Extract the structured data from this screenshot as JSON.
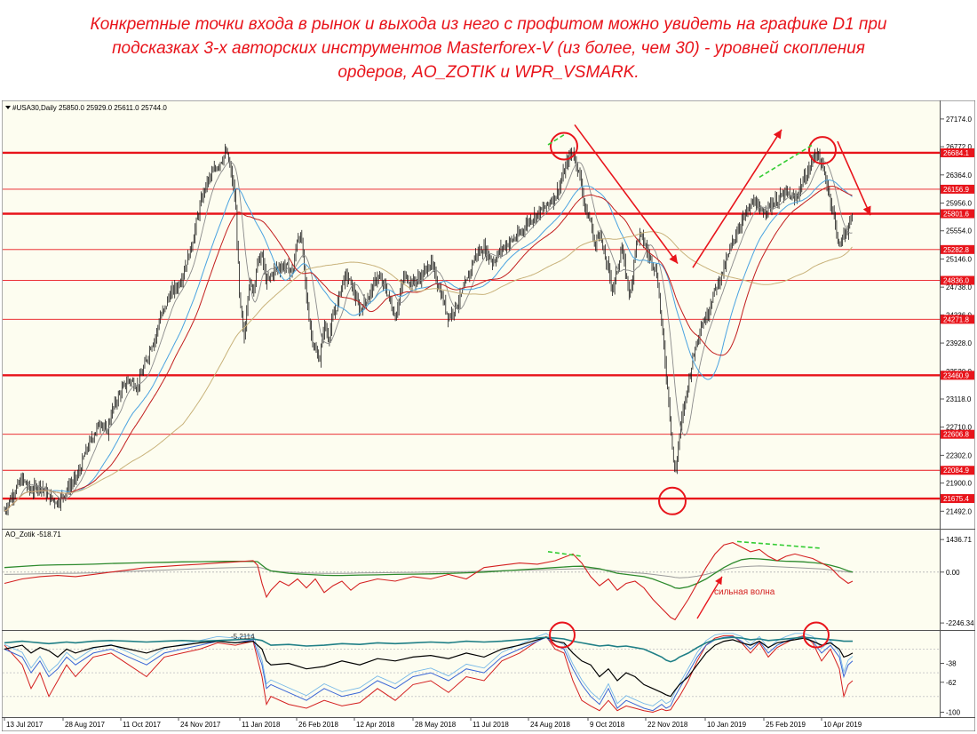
{
  "caption": {
    "lines": [
      "Конкретные точки входа в рынок и выхода из него с профитом  можно увидеть на графике D1 при",
      "подсказках  3-х  авторских инструментов Masterforex-V (из более, чем 30) - уровней скопления",
      "ордеров, AO_ZOTIK  и  WPR_VSMARK."
    ]
  },
  "colors": {
    "background": "#fdfdf0",
    "level_line": "#e8141b",
    "price_bars": "#1a1a1a",
    "ma_fast": "#8a8a8a",
    "ma_blue": "#4aa3e0",
    "ma_red": "#c21e1e",
    "ma_tan": "#c8b27a",
    "ao_red": "#d42020",
    "ao_green": "#2d8a2d",
    "ao_gray": "#9a9a9a",
    "wpr_teal": "#1f7f86",
    "wpr_blue": "#3a66d6",
    "wpr_light": "#76b8e8",
    "arrow_red": "#e8141b",
    "divergence_green": "#33cc33"
  },
  "chart_data": [
    {
      "id": "price",
      "type": "line",
      "symbol_label": "#USA30,Daily  25850.0 25929.0 25611.0 25744.0",
      "yticks": [
        "27174.0",
        "26772.0",
        "26364.0",
        "25956.0",
        "25554.0",
        "25146.0",
        "24738.0",
        "24336.0",
        "23928.0",
        "23520.0",
        "23118.0",
        "22710.0",
        "22302.0",
        "21900.0",
        "21492.0"
      ],
      "ytick_values": [
        27174,
        26772,
        26364,
        25956,
        25554,
        25146,
        24738,
        24336,
        23928,
        23520,
        23118,
        22710,
        22302,
        21900,
        21492
      ],
      "ylim": [
        21290,
        27340
      ],
      "levels": [
        {
          "label": "26684.1",
          "value": 26684.1,
          "bold": true
        },
        {
          "label": "26156.9",
          "value": 26156.9,
          "bold": false
        },
        {
          "label": "25801.6",
          "value": 25801.6,
          "bold": true
        },
        {
          "label": "25282.8",
          "value": 25282.8,
          "bold": false
        },
        {
          "label": "24836.0",
          "value": 24836.0,
          "bold": false
        },
        {
          "label": "24271.8",
          "value": 24271.8,
          "bold": false
        },
        {
          "label": "23460.9",
          "value": 23460.9,
          "bold": true
        },
        {
          "label": "22606.8",
          "value": 22606.8,
          "bold": false
        },
        {
          "label": "22084.9",
          "value": 22084.9,
          "bold": false
        },
        {
          "label": "21675.4",
          "value": 21675.4,
          "bold": true
        }
      ],
      "x": [
        0,
        10,
        20,
        30,
        40,
        50,
        60,
        70,
        80,
        85,
        90,
        97,
        105,
        110,
        115,
        120,
        125,
        130,
        140,
        150,
        155,
        160,
        165,
        170,
        175,
        180,
        185,
        190,
        195,
        200,
        205,
        210,
        215,
        220,
        225,
        230,
        240,
        250,
        255,
        260,
        265,
        270,
        275,
        280,
        285,
        290,
        295,
        300,
        305,
        315,
        325,
        330,
        335,
        340,
        345,
        350,
        355,
        360,
        365,
        370,
        375,
        380,
        385,
        390,
        400,
        410,
        420,
        430,
        440,
        450,
        460,
        470,
        480,
        490,
        500,
        510,
        520,
        530,
        540,
        550,
        560,
        570,
        580,
        590,
        600,
        610,
        615,
        620,
        625,
        630,
        635,
        640,
        645,
        650,
        655,
        660,
        665,
        670,
        675,
        680,
        685,
        690,
        695,
        700,
        705,
        710,
        715,
        720,
        725,
        730,
        735,
        740,
        745,
        750,
        752,
        755,
        760,
        765,
        770,
        775,
        780,
        785,
        790,
        800,
        810,
        820,
        830,
        840,
        845,
        850,
        860,
        870,
        880,
        890,
        900,
        905,
        910,
        915,
        920,
        925,
        930,
        935,
        940,
        945,
        950,
        955
      ],
      "close": [
        21500,
        21750,
        21960,
        21780,
        21880,
        21700,
        21620,
        21800,
        21960,
        22080,
        22300,
        22510,
        22720,
        22800,
        22600,
        22900,
        23060,
        23200,
        23400,
        23300,
        23500,
        23680,
        23900,
        24000,
        24300,
        24400,
        24600,
        24700,
        24750,
        24900,
        25100,
        25300,
        25600,
        25900,
        26150,
        26300,
        26500,
        26700,
        26400,
        26000,
        24500,
        24000,
        24800,
        24700,
        25100,
        25200,
        24800,
        24900,
        25000,
        25050,
        24950,
        25500,
        25400,
        24600,
        24100,
        23800,
        23700,
        24200,
        24000,
        24300,
        24500,
        24800,
        24900,
        24800,
        24400,
        24600,
        24900,
        24700,
        24300,
        24900,
        24800,
        24900,
        25100,
        24700,
        24300,
        24500,
        24800,
        25200,
        25300,
        25100,
        25300,
        25400,
        25500,
        25700,
        25800,
        25900,
        26000,
        26050,
        26200,
        26400,
        26600,
        26700,
        26500,
        26200,
        25800,
        25700,
        25300,
        25600,
        25200,
        25000,
        24700,
        25000,
        25300,
        24900,
        24600,
        25300,
        25500,
        25400,
        25200,
        25100,
        24900,
        24200,
        23500,
        22800,
        22400,
        22000,
        22600,
        23000,
        23350,
        23700,
        24000,
        24200,
        24300,
        24700,
        25000,
        25400,
        25700,
        25900,
        26000,
        25800,
        25900,
        26000,
        26100,
        26000,
        26300,
        26400,
        26600,
        26700,
        26500,
        26300,
        26000,
        25700,
        25300,
        25500,
        25600,
        25744
      ]
    },
    {
      "id": "ao_zotik",
      "type": "line",
      "label": "AO_Zotik -518.71",
      "yticks": [
        "1436.71",
        "0.00",
        "-2246.34"
      ],
      "ytick_values": [
        1436.71,
        0,
        -2246.34
      ],
      "ylim": [
        -2400,
        1600
      ],
      "annotation": "сильная волна",
      "x": [
        0,
        20,
        40,
        60,
        80,
        100,
        120,
        140,
        160,
        180,
        200,
        220,
        240,
        260,
        280,
        285,
        290,
        295,
        300,
        310,
        320,
        330,
        340,
        350,
        360,
        370,
        380,
        390,
        400,
        420,
        440,
        460,
        480,
        500,
        520,
        540,
        560,
        580,
        600,
        620,
        640,
        650,
        660,
        670,
        680,
        690,
        700,
        710,
        720,
        730,
        740,
        750,
        755,
        760,
        770,
        780,
        790,
        800,
        810,
        820,
        830,
        840,
        850,
        860,
        870,
        880,
        890,
        900,
        910,
        920,
        930,
        940,
        950,
        955
      ],
      "ao": [
        -500,
        -300,
        -200,
        -150,
        -200,
        -100,
        0,
        100,
        200,
        250,
        300,
        350,
        400,
        450,
        500,
        300,
        -500,
        -1100,
        -800,
        -400,
        -600,
        -300,
        -700,
        -300,
        -900,
        -600,
        -400,
        -800,
        -500,
        -300,
        -400,
        -200,
        -300,
        -100,
        -300,
        200,
        300,
        400,
        350,
        500,
        800,
        400,
        -200,
        -600,
        -300,
        -800,
        -500,
        -400,
        -700,
        -1200,
        -1600,
        -2000,
        -2100,
        -1800,
        -1200,
        -500,
        200,
        800,
        1200,
        1300,
        1100,
        900,
        1000,
        700,
        500,
        700,
        800,
        700,
        600,
        400,
        200,
        -200,
        -500,
        -400
      ],
      "signal": [
        200,
        250,
        300,
        320,
        330,
        350,
        380,
        400,
        420,
        430,
        450,
        460,
        470,
        480,
        470,
        460,
        300,
        150,
        50,
        0,
        -50,
        -80,
        -100,
        -120,
        -140,
        -150,
        -150,
        -140,
        -130,
        -120,
        -100,
        -90,
        -80,
        -60,
        -30,
        0,
        50,
        100,
        150,
        200,
        250,
        260,
        200,
        150,
        50,
        -50,
        -100,
        -150,
        -200,
        -300,
        -450,
        -600,
        -700,
        -720,
        -650,
        -500,
        -300,
        -50,
        200,
        400,
        550,
        600,
        580,
        550,
        500,
        480,
        470,
        450,
        420,
        380,
        300,
        200,
        50,
        0
      ],
      "base": [
        -100,
        -90,
        -80,
        -60,
        -50,
        -30,
        0,
        30,
        60,
        90,
        120,
        150,
        180,
        200,
        220,
        220,
        180,
        120,
        60,
        20,
        0,
        -20,
        -40,
        -50,
        -60,
        -60,
        -60,
        -50,
        -40,
        -30,
        -20,
        -10,
        0,
        10,
        20,
        40,
        60,
        80,
        100,
        120,
        140,
        150,
        140,
        120,
        80,
        30,
        0,
        -30,
        -60,
        -100,
        -150,
        -200,
        -230,
        -250,
        -230,
        -180,
        -100,
        0,
        100,
        180,
        230,
        260,
        270,
        260,
        240,
        220,
        200,
        180,
        160,
        140,
        100,
        50,
        0,
        -10
      ]
    },
    {
      "id": "wpr_vsmark",
      "type": "line",
      "yticks": [
        "-38",
        "-62",
        "-100"
      ],
      "ytick_values": [
        -38,
        -62,
        -100
      ],
      "ylim": [
        -104,
        2
      ],
      "legend_strip": "-5.2114",
      "x": [
        0,
        20,
        30,
        40,
        50,
        60,
        70,
        80,
        100,
        120,
        140,
        160,
        180,
        200,
        220,
        240,
        260,
        280,
        290,
        295,
        300,
        320,
        340,
        360,
        380,
        400,
        420,
        440,
        460,
        480,
        500,
        520,
        540,
        560,
        580,
        600,
        610,
        620,
        630,
        640,
        650,
        660,
        670,
        680,
        690,
        700,
        710,
        720,
        730,
        740,
        745,
        750,
        755,
        760,
        770,
        780,
        790,
        800,
        810,
        820,
        830,
        840,
        850,
        860,
        870,
        880,
        890,
        900,
        910,
        920,
        930,
        940,
        945,
        950,
        955
      ],
      "teal": [
        -12,
        -10,
        -11,
        -12,
        -13,
        -12,
        -11,
        -12,
        -10,
        -9,
        -10,
        -11,
        -10,
        -9,
        -10,
        -9,
        -8,
        -7,
        -9,
        -12,
        -15,
        -14,
        -16,
        -15,
        -13,
        -14,
        -12,
        -13,
        -12,
        -11,
        -12,
        -10,
        -11,
        -10,
        -8,
        -6,
        -5,
        -6,
        -7,
        -10,
        -12,
        -14,
        -16,
        -15,
        -17,
        -16,
        -18,
        -20,
        -25,
        -30,
        -34,
        -36,
        -34,
        -30,
        -25,
        -18,
        -12,
        -8,
        -6,
        -5,
        -6,
        -8,
        -7,
        -9,
        -8,
        -7,
        -6,
        -5,
        -6,
        -7,
        -8,
        -9,
        -10,
        -10,
        -10
      ],
      "black": [
        -20,
        -15,
        -25,
        -18,
        -22,
        -30,
        -20,
        -25,
        -18,
        -15,
        -20,
        -25,
        -18,
        -15,
        -12,
        -10,
        -12,
        -10,
        -20,
        -35,
        -40,
        -38,
        -45,
        -42,
        -35,
        -40,
        -32,
        -35,
        -30,
        -28,
        -32,
        -25,
        -30,
        -20,
        -15,
        -8,
        -5,
        -10,
        -12,
        -25,
        -35,
        -40,
        -55,
        -45,
        -60,
        -50,
        -55,
        -65,
        -70,
        -75,
        -78,
        -80,
        -72,
        -65,
        -55,
        -40,
        -25,
        -15,
        -10,
        -8,
        -12,
        -15,
        -10,
        -18,
        -12,
        -10,
        -8,
        -6,
        -10,
        -15,
        -12,
        -20,
        -30,
        -28,
        -25
      ],
      "blue": [
        -20,
        -30,
        -50,
        -35,
        -55,
        -45,
        -30,
        -40,
        -25,
        -20,
        -30,
        -40,
        -25,
        -20,
        -15,
        -10,
        -12,
        -8,
        -40,
        -70,
        -65,
        -75,
        -85,
        -70,
        -80,
        -75,
        -60,
        -70,
        -55,
        -50,
        -60,
        -45,
        -50,
        -30,
        -20,
        -10,
        -5,
        -15,
        -20,
        -45,
        -65,
        -80,
        -90,
        -70,
        -95,
        -85,
        -90,
        -95,
        -98,
        -90,
        -95,
        -92,
        -80,
        -70,
        -50,
        -30,
        -15,
        -8,
        -5,
        -4,
        -10,
        -20,
        -10,
        -25,
        -15,
        -10,
        -6,
        -4,
        -10,
        -25,
        -15,
        -30,
        -55,
        -40,
        -35
      ],
      "red": [
        -15,
        -40,
        -70,
        -50,
        -80,
        -60,
        -40,
        -55,
        -30,
        -25,
        -40,
        -55,
        -30,
        -25,
        -20,
        -12,
        -15,
        -10,
        -55,
        -90,
        -80,
        -90,
        -95,
        -85,
        -92,
        -88,
        -70,
        -85,
        -65,
        -60,
        -75,
        -55,
        -60,
        -35,
        -25,
        -10,
        -4,
        -20,
        -25,
        -60,
        -85,
        -92,
        -98,
        -85,
        -98,
        -92,
        -95,
        -98,
        -100,
        -96,
        -98,
        -97,
        -88,
        -80,
        -60,
        -35,
        -15,
        -6,
        -3,
        -3,
        -12,
        -25,
        -12,
        -30,
        -18,
        -12,
        -6,
        -3,
        -12,
        -35,
        -20,
        -45,
        -80,
        -65,
        -60
      ]
    }
  ],
  "xaxis": {
    "labels": [
      "13 Jul 2017",
      "28 Aug 2017",
      "11 Oct 2017",
      "24 Nov 2017",
      "11 Jan 2018",
      "26 Feb 2018",
      "12 Apr 2018",
      "28 May 2018",
      "11 Jul 2018",
      "24 Aug 2018",
      "9 Oct 2018",
      "22 Nov 2018",
      "10 Jan 2019",
      "25 Feb 2019",
      "10 Apr 2019"
    ],
    "positions": [
      0,
      66,
      131,
      196,
      265,
      329,
      394,
      460,
      525,
      590,
      657,
      722,
      789,
      855,
      920
    ]
  }
}
